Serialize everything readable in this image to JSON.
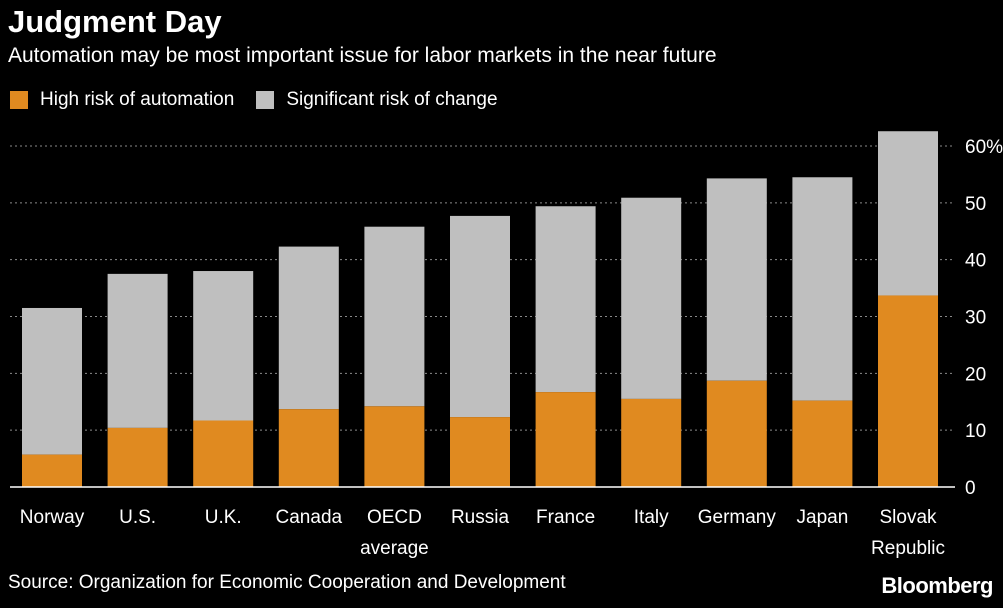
{
  "title": "Judgment Day",
  "subtitle": "Automation may be most important issue for labor markets in the near future",
  "source": "Source: Organization for Economic Cooperation and Development",
  "logo": "Bloomberg",
  "colors": {
    "high": "#E08A20",
    "significant": "#BFBFBF",
    "grid": "#8a8a8a",
    "background": "#000000"
  },
  "chart_data": {
    "type": "bar",
    "stacked": true,
    "categories": [
      [
        "Norway"
      ],
      [
        "U.S."
      ],
      [
        "U.K."
      ],
      [
        "Canada"
      ],
      [
        "OECD",
        "average"
      ],
      [
        "Russia"
      ],
      [
        "France"
      ],
      [
        "Italy"
      ],
      [
        "Germany"
      ],
      [
        "Japan"
      ],
      [
        "Slovak",
        "Republic"
      ]
    ],
    "series": [
      {
        "name": "High risk of automation",
        "color": "#E08A20",
        "values": [
          5.7,
          10.4,
          11.7,
          13.7,
          14.2,
          12.3,
          16.7,
          15.5,
          18.7,
          15.2,
          33.7
        ]
      },
      {
        "name": "Significant risk of change",
        "color": "#BFBFBF",
        "values": [
          25.8,
          27.1,
          26.3,
          28.6,
          31.6,
          35.4,
          32.7,
          35.4,
          35.6,
          39.3,
          28.9
        ]
      }
    ],
    "yticks": [
      "0",
      "10",
      "20",
      "30",
      "40",
      "50",
      "60%"
    ],
    "ylim": [
      0,
      60
    ],
    "grid": true,
    "legend_position": "top-left",
    "yaxis_position": "right"
  }
}
